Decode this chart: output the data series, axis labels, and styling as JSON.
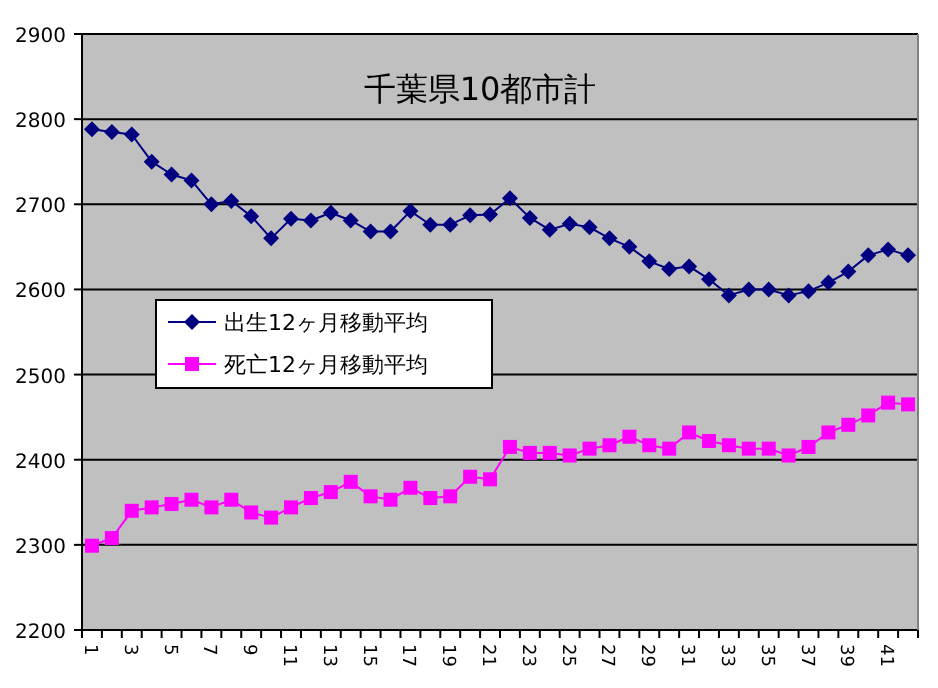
{
  "chart_data": {
    "type": "line",
    "title": "千葉県10都市計",
    "categories": [
      "1",
      null,
      "3",
      null,
      "5",
      null,
      "7",
      null,
      "9",
      null,
      "11",
      null,
      "13",
      null,
      "15",
      null,
      "17",
      null,
      "19",
      null,
      "21",
      null,
      "23",
      null,
      "25",
      null,
      "27",
      null,
      "29",
      null,
      "31",
      null,
      "33",
      null,
      "35",
      null,
      "37",
      null,
      "39",
      null,
      "41",
      null
    ],
    "series": [
      {
        "name": "出生12ヶ月移動平均",
        "color": "#000080",
        "marker": "diamond",
        "values": [
          2788,
          2785,
          2782,
          2750,
          2735,
          2728,
          2700,
          2704,
          2686,
          2660,
          2683,
          2681,
          2690,
          2681,
          2668,
          2668,
          2692,
          2676,
          2676,
          2687,
          2688,
          2707,
          2684,
          2670,
          2677,
          2673,
          2660,
          2650,
          2633,
          2624,
          2627,
          2612,
          2593,
          2600,
          2600,
          2593,
          2598,
          2608,
          2621,
          2640,
          2647,
          2640
        ]
      },
      {
        "name": "死亡12ヶ月移動平均",
        "color": "#ff00ff",
        "marker": "square",
        "values": [
          2299,
          2308,
          2340,
          2344,
          2348,
          2353,
          2344,
          2353,
          2338,
          2332,
          2344,
          2355,
          2362,
          2374,
          2357,
          2353,
          2367,
          2355,
          2357,
          2380,
          2377,
          2415,
          2408,
          2408,
          2405,
          2413,
          2417,
          2427,
          2417,
          2413,
          2432,
          2422,
          2417,
          2413,
          2413,
          2405,
          2415,
          2432,
          2441,
          2452,
          2467,
          2465
        ]
      }
    ],
    "ylim": [
      2200,
      2900
    ],
    "yticks": [
      2200,
      2300,
      2400,
      2500,
      2600,
      2700,
      2800,
      2900
    ],
    "grid": "y",
    "legend": "left"
  }
}
